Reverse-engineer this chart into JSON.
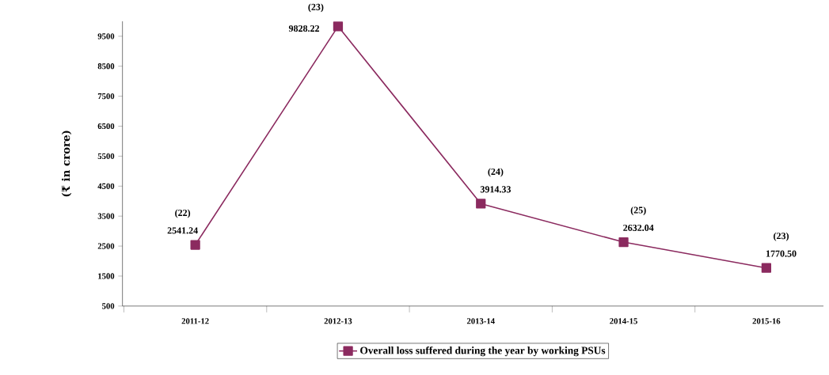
{
  "chart_data": {
    "type": "line",
    "ylabel": "(₹ in crore)",
    "categories": [
      "2011-12",
      "2012-13",
      "2013-14",
      "2014-15",
      "2015-16"
    ],
    "series": [
      {
        "name": "Overall loss suffered during the year by working PSUs",
        "color": "#8b2a5f",
        "values": [
          2541.24,
          9828.22,
          3914.33,
          2632.04,
          1770.5
        ],
        "value_labels": [
          "2541.24",
          "9828.22",
          "3914.33",
          "2632.04",
          "1770.50"
        ]
      }
    ],
    "annotations": [
      {
        "text": "(22)",
        "x": "2011-12",
        "y": 2541.24
      },
      {
        "text": "(23)",
        "x": "2012-13",
        "y": 9828.22
      },
      {
        "text": "(24)",
        "x": "2013-14",
        "y": 3914.33
      },
      {
        "text": "(25)",
        "x": "2014-15",
        "y": 2632.04
      },
      {
        "text": "(23)",
        "x": "2015-16",
        "y": 1770.5
      }
    ],
    "ylim": [
      500,
      10000
    ],
    "yticks": [
      500,
      1500,
      2500,
      3500,
      4500,
      5500,
      6500,
      7500,
      8500,
      9500
    ],
    "marker": "square",
    "line_style": "solid",
    "grid": false,
    "legend": "bottom"
  }
}
